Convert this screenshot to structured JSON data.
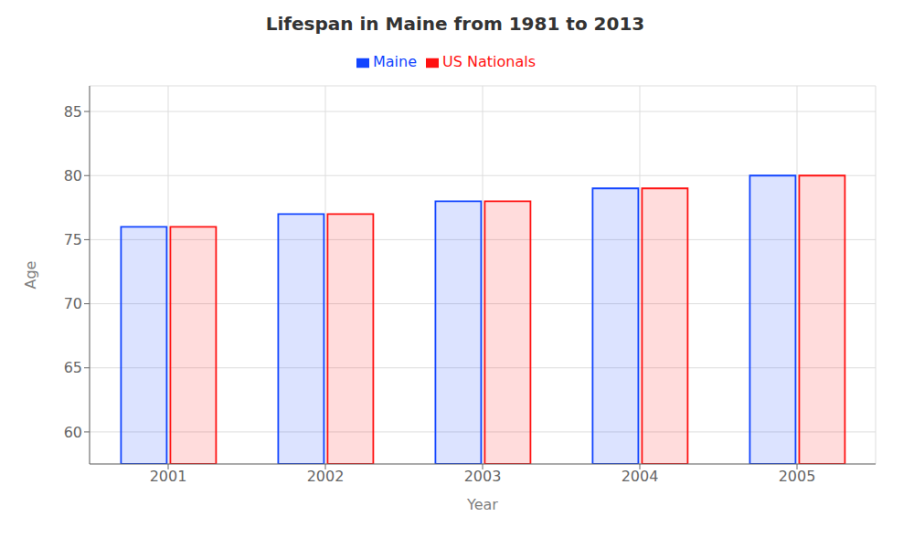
{
  "chart_data": {
    "type": "bar",
    "title": "Lifespan in Maine from 1981 to 2013",
    "x_label": "Year",
    "y_label": "Age",
    "categories": [
      "2001",
      "2002",
      "2003",
      "2004",
      "2005"
    ],
    "series": [
      {
        "name": "Maine",
        "color": "#1144ff",
        "values": [
          76.0,
          77.0,
          78.0,
          79.0,
          80.0
        ]
      },
      {
        "name": "US Nationals",
        "color": "#ff1111",
        "values": [
          76.0,
          77.0,
          78.0,
          79.0,
          80.0
        ]
      }
    ],
    "ylim": [
      57.5,
      87
    ],
    "yticks": [
      60,
      65,
      70,
      75,
      80,
      85
    ],
    "grid": true,
    "legend": "top"
  }
}
